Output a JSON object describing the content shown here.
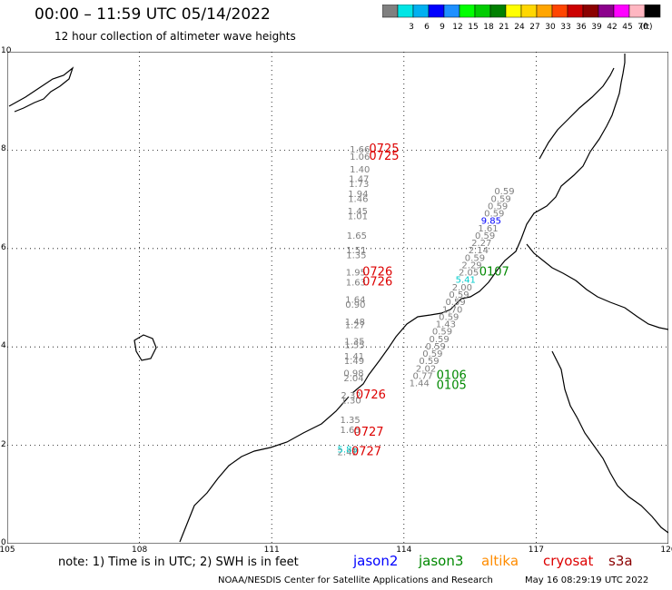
{
  "header": {
    "title": "00:00 – 11:59 UTC 05/14/2022",
    "subtitle": "12 hour collection of altimeter wave heights"
  },
  "scale": {
    "unit": "(ft)",
    "bins": [
      {
        "label": "",
        "color": "#808080"
      },
      {
        "label": "3",
        "color": "#00e5e5"
      },
      {
        "label": "6",
        "color": "#00b0f0"
      },
      {
        "label": "9",
        "color": "#0000ff"
      },
      {
        "label": "12",
        "color": "#1e90ff"
      },
      {
        "label": "15",
        "color": "#00ff00"
      },
      {
        "label": "18",
        "color": "#00cc00"
      },
      {
        "label": "21",
        "color": "#008000"
      },
      {
        "label": "24",
        "color": "#ffff00"
      },
      {
        "label": "27",
        "color": "#ffd700"
      },
      {
        "label": "30",
        "color": "#ffa500"
      },
      {
        "label": "33",
        "color": "#ff4500"
      },
      {
        "label": "36",
        "color": "#cc0000"
      },
      {
        "label": "39",
        "color": "#8b0000"
      },
      {
        "label": "42",
        "color": "#8b008b"
      },
      {
        "label": "45",
        "color": "#ff00ff"
      },
      {
        "label": "70",
        "color": "#ffb6c1"
      },
      {
        "label": "",
        "color": "#000000"
      }
    ]
  },
  "axes": {
    "lon_labels": [
      "105",
      "108",
      "111",
      "114",
      "117",
      "120"
    ],
    "lat_labels": [
      "0",
      "2",
      "4",
      "6",
      "8",
      "10"
    ]
  },
  "observations": {
    "jason3_gray": [
      {
        "lat": 7.1,
        "lon": 116.28,
        "v": "0.59"
      },
      {
        "lat": 6.95,
        "lon": 116.2,
        "v": "0.59"
      },
      {
        "lat": 6.8,
        "lon": 116.13,
        "v": "0.59"
      },
      {
        "lat": 6.65,
        "lon": 116.05,
        "v": "0.59"
      },
      {
        "lat": 6.35,
        "lon": 115.91,
        "v": "1.61"
      },
      {
        "lat": 6.2,
        "lon": 115.84,
        "v": "0.59"
      },
      {
        "lat": 6.05,
        "lon": 115.76,
        "v": "2.27"
      },
      {
        "lat": 5.9,
        "lon": 115.69,
        "v": "2.14"
      },
      {
        "lat": 5.75,
        "lon": 115.61,
        "v": "0.59"
      },
      {
        "lat": 5.6,
        "lon": 115.54,
        "v": "2.29"
      },
      {
        "lat": 5.45,
        "lon": 115.47,
        "v": "2.05"
      },
      {
        "lat": 5.15,
        "lon": 115.32,
        "v": "2.00"
      },
      {
        "lat": 5.0,
        "lon": 115.25,
        "v": "0.59"
      },
      {
        "lat": 4.85,
        "lon": 115.17,
        "v": "0.59"
      },
      {
        "lat": 4.7,
        "lon": 115.1,
        "v": "1.70"
      },
      {
        "lat": 4.55,
        "lon": 115.02,
        "v": "0.59"
      },
      {
        "lat": 4.4,
        "lon": 114.95,
        "v": "1.43"
      },
      {
        "lat": 4.25,
        "lon": 114.87,
        "v": "0.59"
      },
      {
        "lat": 4.1,
        "lon": 114.8,
        "v": "0.59"
      },
      {
        "lat": 3.95,
        "lon": 114.72,
        "v": "0.59"
      },
      {
        "lat": 3.8,
        "lon": 114.65,
        "v": "0.59"
      },
      {
        "lat": 3.65,
        "lon": 114.57,
        "v": "0.59"
      },
      {
        "lat": 3.5,
        "lon": 114.5,
        "v": "2.02"
      },
      {
        "lat": 3.35,
        "lon": 114.43,
        "v": "0.77"
      },
      {
        "lat": 3.2,
        "lon": 114.35,
        "v": "1.44"
      }
    ],
    "jason3_colored": [
      {
        "lat": 6.5,
        "lon": 115.98,
        "v": "9.85",
        "color": "#0000ff"
      },
      {
        "lat": 5.3,
        "lon": 115.4,
        "v": "5.41",
        "color": "#00cccc"
      }
    ],
    "cryosat_gray": [
      {
        "lat": 7.95,
        "lon": 113.0,
        "v": "1.66"
      },
      {
        "lat": 7.8,
        "lon": 113.0,
        "v": "1.06"
      },
      {
        "lat": 7.55,
        "lon": 113.0,
        "v": "1.40"
      },
      {
        "lat": 7.35,
        "lon": 112.98,
        "v": "1.47"
      },
      {
        "lat": 7.25,
        "lon": 112.98,
        "v": "1.73"
      },
      {
        "lat": 7.05,
        "lon": 112.96,
        "v": "1.94"
      },
      {
        "lat": 6.95,
        "lon": 112.96,
        "v": "1.46"
      },
      {
        "lat": 6.7,
        "lon": 112.95,
        "v": "1.45"
      },
      {
        "lat": 6.6,
        "lon": 112.95,
        "v": "1.01"
      },
      {
        "lat": 6.2,
        "lon": 112.93,
        "v": "1.65"
      },
      {
        "lat": 5.9,
        "lon": 112.92,
        "v": "1.51"
      },
      {
        "lat": 5.8,
        "lon": 112.92,
        "v": "1.35"
      },
      {
        "lat": 5.45,
        "lon": 112.91,
        "v": "1.95"
      },
      {
        "lat": 5.25,
        "lon": 112.91,
        "v": "1.63"
      },
      {
        "lat": 4.9,
        "lon": 112.9,
        "v": "1.64"
      },
      {
        "lat": 4.8,
        "lon": 112.9,
        "v": "0.90"
      },
      {
        "lat": 4.45,
        "lon": 112.89,
        "v": "1.48"
      },
      {
        "lat": 4.38,
        "lon": 112.89,
        "v": "1.27"
      },
      {
        "lat": 4.05,
        "lon": 112.88,
        "v": "1.35"
      },
      {
        "lat": 3.98,
        "lon": 112.88,
        "v": "1.55"
      },
      {
        "lat": 3.75,
        "lon": 112.87,
        "v": "1.41"
      },
      {
        "lat": 3.65,
        "lon": 112.87,
        "v": "1.49"
      },
      {
        "lat": 3.4,
        "lon": 112.86,
        "v": "0.98"
      },
      {
        "lat": 3.3,
        "lon": 112.86,
        "v": "2.04"
      },
      {
        "lat": 2.95,
        "lon": 112.8,
        "v": "2.32"
      },
      {
        "lat": 2.85,
        "lon": 112.8,
        "v": "1.30"
      },
      {
        "lat": 2.45,
        "lon": 112.78,
        "v": "1.35"
      },
      {
        "lat": 2.25,
        "lon": 112.78,
        "v": "1.65"
      },
      {
        "lat": 1.8,
        "lon": 112.72,
        "v": "2.41"
      }
    ],
    "cryosat_colored": [
      {
        "lat": 1.85,
        "lon": 112.72,
        "v": "5.86",
        "color": "#00cccc"
      }
    ],
    "cryosat_times": [
      {
        "lat": 7.95,
        "lon": 113.55,
        "t": "0725"
      },
      {
        "lat": 7.8,
        "lon": 113.55,
        "t": "0725"
      },
      {
        "lat": 5.45,
        "lon": 113.4,
        "t": "0726"
      },
      {
        "lat": 5.25,
        "lon": 113.4,
        "t": "0726"
      },
      {
        "lat": 2.95,
        "lon": 113.25,
        "t": "0726"
      },
      {
        "lat": 2.2,
        "lon": 113.2,
        "t": "0727"
      },
      {
        "lat": 1.8,
        "lon": 113.15,
        "t": "0727"
      }
    ],
    "jason3_times": [
      {
        "lat": 5.45,
        "lon": 116.05,
        "t": "0107"
      },
      {
        "lat": 3.35,
        "lon": 115.08,
        "t": "0106"
      },
      {
        "lat": 3.15,
        "lon": 115.08,
        "t": "0105"
      }
    ]
  },
  "colors": {
    "cryosat_time": "#dd0000",
    "jason3_time": "#008800",
    "swh_gray": "#7f7f7f"
  },
  "note": "note:  1) Time is in UTC;  2) SWH is in feet",
  "legend": [
    {
      "label": "jason2",
      "color": "#0000ff"
    },
    {
      "label": "jason3",
      "color": "#008800"
    },
    {
      "label": "altika",
      "color": "#ff8c00"
    },
    {
      "label": "cryosat",
      "color": "#dd0000"
    },
    {
      "label": "s3a",
      "color": "#8b0000"
    }
  ],
  "footer": "NOAA/NESDIS Center for Satellite Applications and Research",
  "timestamp": "May 16 08:29:19 UTC 2022"
}
